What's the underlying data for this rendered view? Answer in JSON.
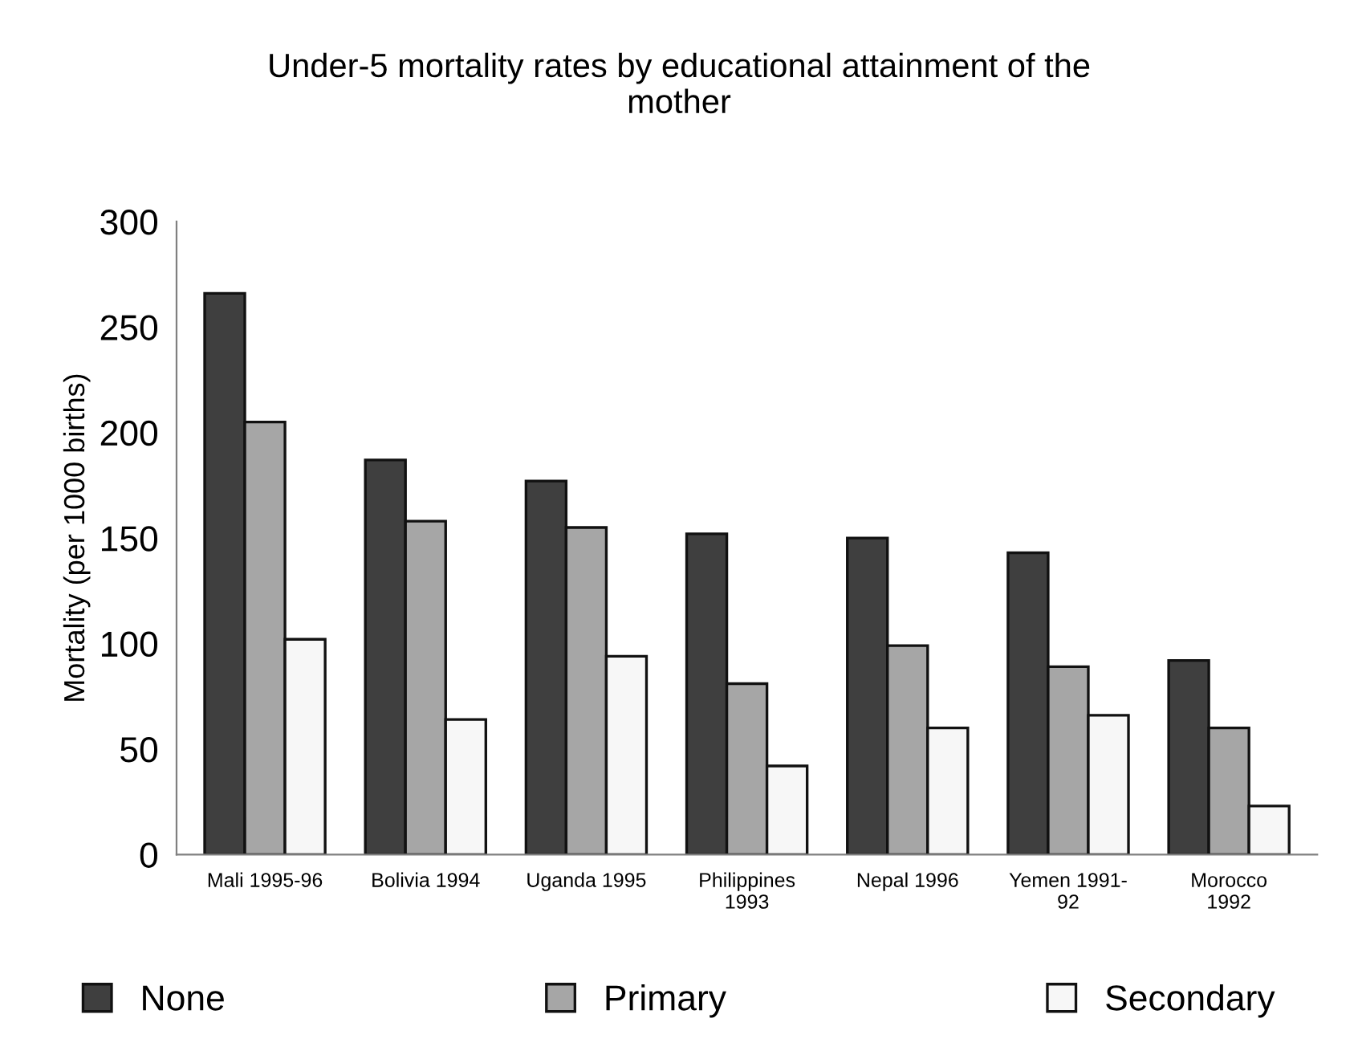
{
  "chart_data": {
    "type": "bar",
    "title": "Under-5 mortality rates by educational attainment of the\nmother",
    "ylabel": "Mortality (per 1000 births)",
    "categories": [
      "Mali 1995-96",
      "Bolivia 1994",
      "Uganda 1995",
      "Philippines\n1993",
      "Nepal 1996",
      "Yemen 1991-\n92",
      "Morocco\n1992"
    ],
    "series": [
      {
        "name": "None",
        "color": "#3f3f3f",
        "values": [
          266,
          187,
          177,
          152,
          150,
          143,
          92
        ]
      },
      {
        "name": "Primary",
        "color": "#a6a6a6",
        "values": [
          205,
          158,
          155,
          81,
          99,
          89,
          60
        ]
      },
      {
        "name": "Secondary",
        "color": "#f7f7f7",
        "values": [
          102,
          64,
          94,
          42,
          60,
          66,
          23
        ]
      }
    ],
    "ylim": [
      0,
      300
    ],
    "yticks": [
      0,
      50,
      100,
      150,
      200,
      250,
      300
    ],
    "grid": false,
    "legend": "bottom"
  }
}
